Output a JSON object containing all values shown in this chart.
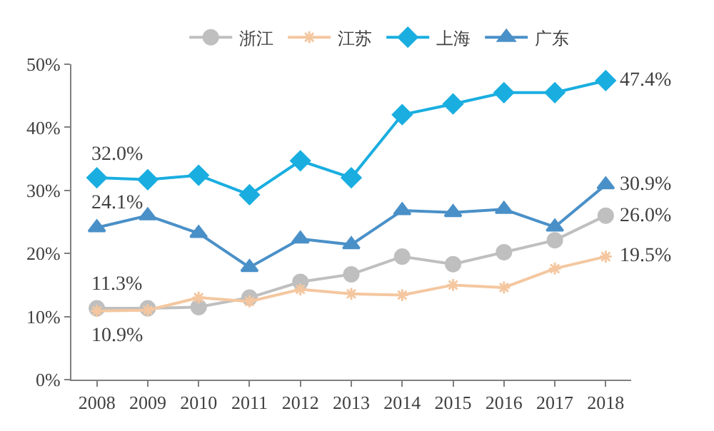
{
  "chart_data": {
    "type": "line",
    "categories": [
      "2008",
      "2009",
      "2010",
      "2011",
      "2012",
      "2013",
      "2014",
      "2015",
      "2016",
      "2017",
      "2018"
    ],
    "ylim": [
      0,
      50
    ],
    "yticks": [
      {
        "value": 0,
        "label": "0%"
      },
      {
        "value": 10,
        "label": "10%"
      },
      {
        "value": 20,
        "label": "20%"
      },
      {
        "value": 30,
        "label": "30%"
      },
      {
        "value": 40,
        "label": "40%"
      },
      {
        "value": 50,
        "label": "50%"
      }
    ],
    "grid": false,
    "legend": "top",
    "series": [
      {
        "name": "浙江",
        "color": "#bfbfbf",
        "marker": "circle",
        "values": [
          11.3,
          11.3,
          11.5,
          13.0,
          15.5,
          16.7,
          19.5,
          18.3,
          20.2,
          22.1,
          26.0
        ]
      },
      {
        "name": "江苏",
        "color": "#f4c7a0",
        "marker": "cross",
        "values": [
          10.9,
          11.0,
          13.0,
          12.4,
          14.3,
          13.6,
          13.4,
          15.0,
          14.6,
          17.6,
          19.5
        ]
      },
      {
        "name": "上海",
        "color": "#1aaee0",
        "marker": "diamond",
        "values": [
          32.0,
          31.7,
          32.4,
          29.3,
          34.7,
          32.0,
          42.0,
          43.7,
          45.5,
          45.5,
          47.4
        ]
      },
      {
        "name": "广东",
        "color": "#4a90c8",
        "marker": "triangle",
        "values": [
          24.1,
          26.0,
          23.2,
          17.8,
          22.3,
          21.4,
          26.8,
          26.5,
          27.0,
          24.2,
          30.9
        ]
      }
    ],
    "annotations": [
      {
        "text": "32.0%",
        "x": "2008",
        "y": 32.0
      },
      {
        "text": "24.1%",
        "x": "2008",
        "y": 24.1
      },
      {
        "text": "11.3%",
        "x": "2008",
        "y": 11.3
      },
      {
        "text": "10.9%",
        "x": "2008",
        "y": 10.9
      },
      {
        "text": "47.4%",
        "x": "2018",
        "y": 47.4
      },
      {
        "text": "30.9%",
        "x": "2018",
        "y": 30.9
      },
      {
        "text": "26.0%",
        "x": "2018",
        "y": 26.0
      },
      {
        "text": "19.5%",
        "x": "2018",
        "y": 19.5
      }
    ]
  }
}
